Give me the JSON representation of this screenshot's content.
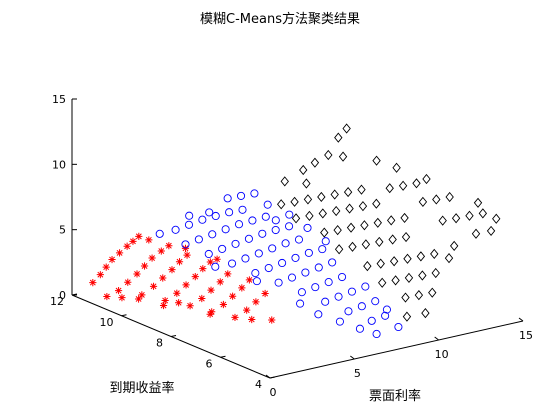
{
  "chart_data": {
    "type": "scatter",
    "projection": "3d",
    "title": "模糊C-Means方法聚类结果",
    "xlabel": "票面利率",
    "ylabel": "到期收益率",
    "zlabel": "",
    "xlim": [
      0,
      15
    ],
    "ylim": [
      4,
      12
    ],
    "zlim": [
      0,
      15
    ],
    "xticks": [
      0,
      5,
      10,
      15
    ],
    "yticks": [
      4,
      6,
      8,
      10,
      12
    ],
    "zticks": [
      0,
      5,
      10,
      15
    ],
    "grid": false,
    "legend": "none",
    "series": [
      {
        "marker": "asterisk",
        "color": "#ff0000",
        "points": [
          [
            0.5,
            11.5,
            1.2
          ],
          [
            0.8,
            11.4,
            1.8
          ],
          [
            1.0,
            11.3,
            2.4
          ],
          [
            1.2,
            11.2,
            3.0
          ],
          [
            1.5,
            11.1,
            3.5
          ],
          [
            1.8,
            11.0,
            4.0
          ],
          [
            2.0,
            10.9,
            4.4
          ],
          [
            2.2,
            10.8,
            4.8
          ],
          [
            1.0,
            10.8,
            1.0
          ],
          [
            1.4,
            10.7,
            1.6
          ],
          [
            1.8,
            10.6,
            2.2
          ],
          [
            2.1,
            10.5,
            2.8
          ],
          [
            2.4,
            10.4,
            3.4
          ],
          [
            2.8,
            10.3,
            3.9
          ],
          [
            3.1,
            10.2,
            4.3
          ],
          [
            1.5,
            10.2,
            1.0
          ],
          [
            1.9,
            10.0,
            1.7
          ],
          [
            2.3,
            9.9,
            2.3
          ],
          [
            2.7,
            9.8,
            2.9
          ],
          [
            3.0,
            9.7,
            3.5
          ],
          [
            3.3,
            9.6,
            4.0
          ],
          [
            2.0,
            9.6,
            0.9
          ],
          [
            2.4,
            9.4,
            1.5
          ],
          [
            2.8,
            9.3,
            2.1
          ],
          [
            3.2,
            9.2,
            2.7
          ],
          [
            3.5,
            9.1,
            3.3
          ],
          [
            3.8,
            9.0,
            3.8
          ],
          [
            2.6,
            9.0,
            0.8
          ],
          [
            3.0,
            8.8,
            1.4
          ],
          [
            3.4,
            8.7,
            2.0
          ],
          [
            3.8,
            8.6,
            2.6
          ],
          [
            4.1,
            8.5,
            3.2
          ],
          [
            3.0,
            8.4,
            0.7
          ],
          [
            3.4,
            8.2,
            1.3
          ],
          [
            3.8,
            8.1,
            1.9
          ],
          [
            4.2,
            8.0,
            2.5
          ],
          [
            4.5,
            7.9,
            3.1
          ],
          [
            3.5,
            7.8,
            0.6
          ],
          [
            3.9,
            7.6,
            1.2
          ],
          [
            4.3,
            7.5,
            1.8
          ],
          [
            4.7,
            7.4,
            2.4
          ],
          [
            2.2,
            9.8,
            0.3
          ],
          [
            3.2,
            8.6,
            0.3
          ],
          [
            4.2,
            7.6,
            0.4
          ],
          [
            4.8,
            7.2,
            0.5
          ],
          [
            1.2,
            10.8,
            0.4
          ],
          [
            2.5,
            10.6,
            4.6
          ],
          [
            3.5,
            9.8,
            4.3
          ],
          [
            4.2,
            9.0,
            3.9
          ],
          [
            0.6,
            11.0,
            0.5
          ],
          [
            1.6,
            10.4,
            0.5
          ],
          [
            2.8,
            9.6,
            0.5
          ]
        ]
      },
      {
        "marker": "circle",
        "color": "#0000ff",
        "points": [
          [
            3.0,
            10.5,
            5.0
          ],
          [
            3.5,
            10.2,
            5.4
          ],
          [
            4.0,
            10.0,
            5.8
          ],
          [
            4.5,
            9.8,
            6.2
          ],
          [
            5.0,
            9.6,
            6.5
          ],
          [
            5.5,
            9.4,
            6.8
          ],
          [
            6.0,
            9.2,
            7.0
          ],
          [
            3.5,
            9.8,
            4.6
          ],
          [
            4.0,
            9.6,
            5.0
          ],
          [
            4.5,
            9.4,
            5.4
          ],
          [
            5.0,
            9.2,
            5.8
          ],
          [
            5.5,
            9.0,
            6.2
          ],
          [
            6.0,
            8.8,
            6.5
          ],
          [
            6.5,
            8.6,
            6.8
          ],
          [
            4.0,
            9.2,
            4.2
          ],
          [
            4.5,
            9.0,
            4.6
          ],
          [
            5.0,
            8.8,
            5.0
          ],
          [
            5.5,
            8.6,
            5.4
          ],
          [
            6.0,
            8.4,
            5.8
          ],
          [
            6.5,
            8.2,
            6.1
          ],
          [
            7.0,
            8.0,
            6.4
          ],
          [
            4.5,
            8.6,
            3.8
          ],
          [
            5.0,
            8.4,
            4.2
          ],
          [
            5.5,
            8.2,
            4.6
          ],
          [
            6.0,
            8.0,
            5.0
          ],
          [
            6.5,
            7.8,
            5.4
          ],
          [
            7.0,
            7.6,
            5.7
          ],
          [
            5.0,
            8.0,
            3.4
          ],
          [
            5.5,
            7.8,
            3.8
          ],
          [
            6.0,
            7.6,
            4.2
          ],
          [
            6.5,
            7.4,
            4.6
          ],
          [
            7.0,
            7.2,
            5.0
          ],
          [
            7.5,
            7.0,
            5.3
          ],
          [
            5.5,
            7.4,
            3.0
          ],
          [
            6.0,
            7.2,
            3.4
          ],
          [
            6.5,
            7.0,
            3.8
          ],
          [
            7.0,
            6.8,
            4.2
          ],
          [
            7.5,
            6.6,
            4.6
          ],
          [
            6.0,
            6.8,
            2.6
          ],
          [
            6.5,
            6.6,
            3.0
          ],
          [
            7.0,
            6.4,
            3.4
          ],
          [
            7.5,
            6.2,
            3.8
          ],
          [
            6.5,
            6.2,
            2.2
          ],
          [
            7.0,
            6.0,
            2.6
          ],
          [
            7.5,
            5.8,
            3.0
          ],
          [
            8.0,
            5.6,
            3.4
          ],
          [
            7.0,
            5.6,
            1.8
          ],
          [
            7.5,
            5.4,
            2.2
          ],
          [
            8.0,
            5.2,
            2.6
          ],
          [
            7.5,
            5.0,
            1.4
          ],
          [
            8.0,
            4.8,
            1.8
          ],
          [
            6.5,
            9.6,
            7.6
          ],
          [
            7.0,
            9.4,
            7.8
          ],
          [
            6.0,
            9.8,
            7.4
          ],
          [
            7.2,
            9.0,
            7.2
          ],
          [
            6.8,
            8.4,
            6.6
          ],
          [
            5.2,
            10.0,
            6.4
          ],
          [
            4.6,
            10.4,
            6.0
          ],
          [
            7.6,
            8.4,
            6.8
          ],
          [
            7.8,
            7.8,
            6.2
          ],
          [
            8.0,
            7.2,
            5.6
          ],
          [
            6.2,
            5.4,
            1.4
          ],
          [
            6.8,
            5.0,
            1.0
          ],
          [
            5.8,
            6.0,
            1.6
          ],
          [
            7.2,
            4.6,
            0.8
          ],
          [
            8.2,
            4.4,
            1.2
          ],
          [
            5.6,
            6.6,
            2.0
          ],
          [
            8.4,
            5.0,
            2.0
          ],
          [
            4.8,
            7.8,
            3.0
          ],
          [
            3.8,
            8.8,
            3.6
          ]
        ]
      },
      {
        "marker": "diamond",
        "color": "#000000",
        "points": [
          [
            8.0,
            9.0,
            7.0
          ],
          [
            8.5,
            8.8,
            7.2
          ],
          [
            9.0,
            8.6,
            7.4
          ],
          [
            9.5,
            8.4,
            7.6
          ],
          [
            10.0,
            8.2,
            7.8
          ],
          [
            10.5,
            8.0,
            8.0
          ],
          [
            11.0,
            7.8,
            8.2
          ],
          [
            8.0,
            8.4,
            6.4
          ],
          [
            8.5,
            8.2,
            6.6
          ],
          [
            9.0,
            8.0,
            6.8
          ],
          [
            9.5,
            7.8,
            7.0
          ],
          [
            10.0,
            7.6,
            7.2
          ],
          [
            10.5,
            7.4,
            7.4
          ],
          [
            11.0,
            7.2,
            7.6
          ],
          [
            8.5,
            7.6,
            5.8
          ],
          [
            9.0,
            7.4,
            6.0
          ],
          [
            9.5,
            7.2,
            6.2
          ],
          [
            10.0,
            7.0,
            6.4
          ],
          [
            10.5,
            6.8,
            6.6
          ],
          [
            11.0,
            6.6,
            6.8
          ],
          [
            11.5,
            6.4,
            7.0
          ],
          [
            8.5,
            7.0,
            5.0
          ],
          [
            9.0,
            6.8,
            5.2
          ],
          [
            9.5,
            6.6,
            5.4
          ],
          [
            10.0,
            6.4,
            5.6
          ],
          [
            10.5,
            6.2,
            5.8
          ],
          [
            11.0,
            6.0,
            6.0
          ],
          [
            9.0,
            6.2,
            4.2
          ],
          [
            9.5,
            6.0,
            4.4
          ],
          [
            10.0,
            5.8,
            4.6
          ],
          [
            10.5,
            5.6,
            4.8
          ],
          [
            11.0,
            5.4,
            5.0
          ],
          [
            11.5,
            5.2,
            5.2
          ],
          [
            9.0,
            5.6,
            3.4
          ],
          [
            9.5,
            5.4,
            3.6
          ],
          [
            10.0,
            5.2,
            3.8
          ],
          [
            10.5,
            5.0,
            4.0
          ],
          [
            11.0,
            4.8,
            4.2
          ],
          [
            9.5,
            5.0,
            2.6
          ],
          [
            10.0,
            4.8,
            2.8
          ],
          [
            10.5,
            4.6,
            3.0
          ],
          [
            9.0,
            4.6,
            1.6
          ],
          [
            9.8,
            4.4,
            1.8
          ],
          [
            11.5,
            7.0,
            8.8
          ],
          [
            12.0,
            6.8,
            9.0
          ],
          [
            12.5,
            6.6,
            9.2
          ],
          [
            12.0,
            6.0,
            8.4
          ],
          [
            12.5,
            5.8,
            8.6
          ],
          [
            13.0,
            5.6,
            8.8
          ],
          [
            12.0,
            5.2,
            7.6
          ],
          [
            12.5,
            5.0,
            7.8
          ],
          [
            13.0,
            4.8,
            8.0
          ],
          [
            13.5,
            4.6,
            8.2
          ],
          [
            12.8,
            4.4,
            7.0
          ],
          [
            13.4,
            4.2,
            7.2
          ],
          [
            14.0,
            4.4,
            7.8
          ],
          [
            13.8,
            5.0,
            8.6
          ],
          [
            11.8,
            4.6,
            6.2
          ],
          [
            11.2,
            4.4,
            5.6
          ],
          [
            10.0,
            9.0,
            9.6
          ],
          [
            10.5,
            8.8,
            10.2
          ],
          [
            10.8,
            8.6,
            11.6
          ],
          [
            11.0,
            8.4,
            12.4
          ],
          [
            10.2,
            8.0,
            10.8
          ],
          [
            12.2,
            7.2,
            10.0
          ],
          [
            11.6,
            7.6,
            10.4
          ],
          [
            12.8,
            6.4,
            9.6
          ],
          [
            9.2,
            8.8,
            8.4
          ],
          [
            9.6,
            9.2,
            9.0
          ],
          [
            8.8,
            9.4,
            8.2
          ]
        ]
      }
    ]
  }
}
